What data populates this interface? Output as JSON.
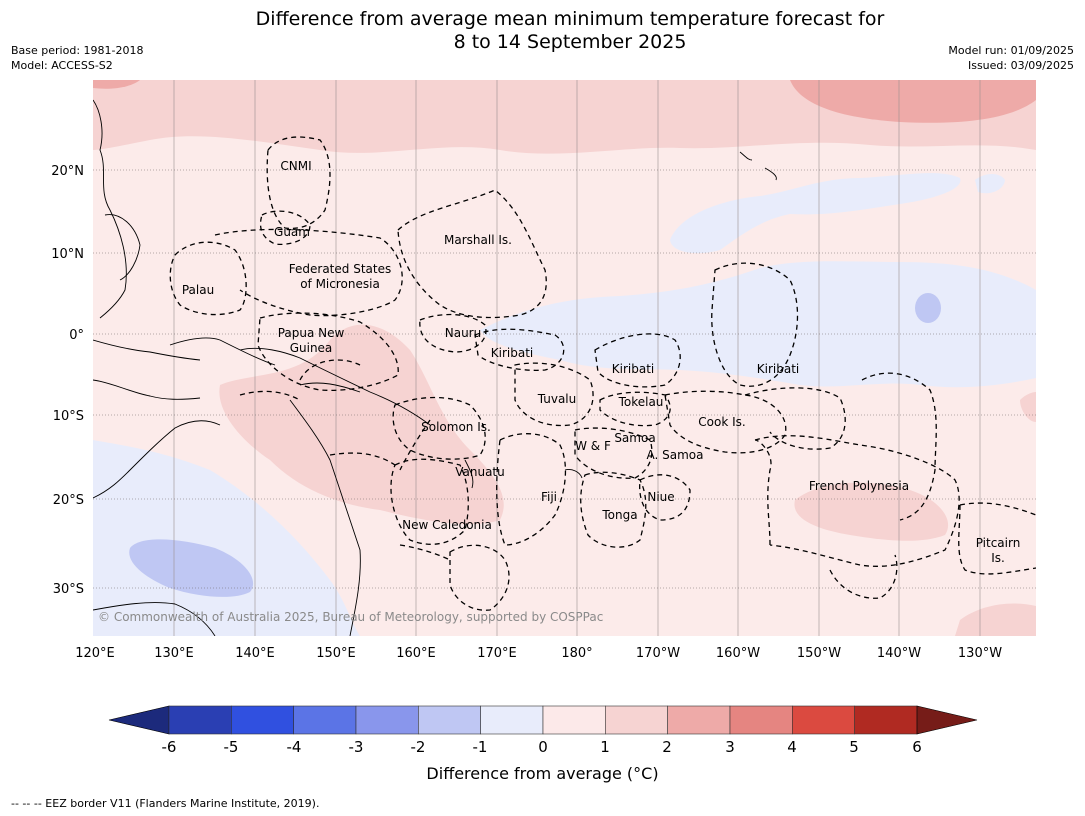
{
  "title": {
    "line1": "Difference from average mean minimum temperature forecast for",
    "line2": "8 to 14 September 2025"
  },
  "meta": {
    "base_period": "Base period: 1981-2018",
    "model": "Model: ACCESS-S2",
    "model_run": "Model run: 01/09/2025",
    "issued": "Issued: 03/09/2025"
  },
  "map": {
    "lat_labels": [
      "20°N",
      "10°N",
      "0°",
      "10°S",
      "20°S",
      "30°S"
    ],
    "lon_labels": [
      "120°E",
      "130°E",
      "140°E",
      "150°E",
      "160°E",
      "170°E",
      "180°",
      "170°W",
      "160°W",
      "150°W",
      "140°W",
      "130°W"
    ],
    "regions": [
      "CNMI",
      "Guam",
      "Marshall Is.",
      "Federated States",
      "of Micronesia",
      "Palau",
      "Papua New",
      "Guinea",
      "Nauru",
      "Kiribati",
      "Kiribati",
      "Kiribati",
      "Tuvalu",
      "Tokelau",
      "Solomon Is.",
      "Cook Is.",
      "Samoa",
      "W & F",
      "A. Samoa",
      "Vanuatu",
      "Fiji",
      "Niue",
      "French Polynesia",
      "Tonga",
      "New Caledonia",
      "Pitcairn",
      "Is."
    ],
    "copyright": "© Commonwealth of Australia 2025, Bureau of Meteorology, supported by COSPPac"
  },
  "colorbar": {
    "ticks": [
      "-6",
      "-5",
      "-4",
      "-3",
      "-2",
      "-1",
      "0",
      "1",
      "2",
      "3",
      "4",
      "5",
      "6"
    ],
    "colors": [
      "#1c2a7c",
      "#2a3fb3",
      "#3050e0",
      "#5b74e6",
      "#8996ec",
      "#bfc7f3",
      "#e8ecfb",
      "#fce9e9",
      "#f6d3d2",
      "#eeaaa8",
      "#e58581",
      "#db4a40",
      "#b02a22",
      "#761c18"
    ],
    "label": "Difference from average ($^\\circ$C)",
    "label_display": "Difference from average (°C)"
  },
  "footnote": "--  --  -- EEZ border V11 (Flanders Marine Institute, 2019)."
}
